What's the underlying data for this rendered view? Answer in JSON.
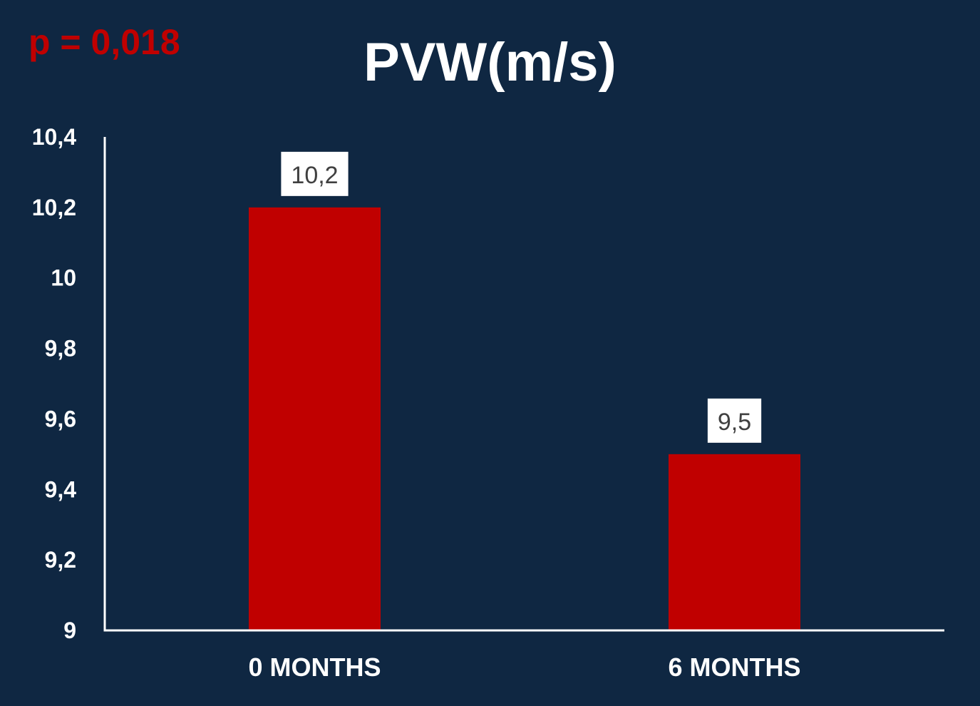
{
  "annotation": {
    "p_value": "p = 0,018"
  },
  "colors": {
    "background": "#0f2742",
    "bar": "#c00000",
    "axis": "#ffffff",
    "annotation": "#c00000",
    "data_label_bg": "#ffffff",
    "data_label_text": "#404040"
  },
  "chart_data": {
    "type": "bar",
    "title": "PVW(m/s)",
    "xlabel": "",
    "ylabel": "",
    "categories": [
      "0 MONTHS",
      "6 MONTHS"
    ],
    "values": [
      10.2,
      9.5
    ],
    "data_labels": [
      "10,2",
      "9,5"
    ],
    "ylim": [
      9,
      10.4
    ],
    "yticks": [
      9,
      9.2,
      9.4,
      9.6,
      9.8,
      10,
      10.2,
      10.4
    ],
    "ytick_labels": [
      "9",
      "9,2",
      "9,4",
      "9,6",
      "9,8",
      "10",
      "10,2",
      "10,4"
    ],
    "grid": false,
    "legend": "none"
  }
}
